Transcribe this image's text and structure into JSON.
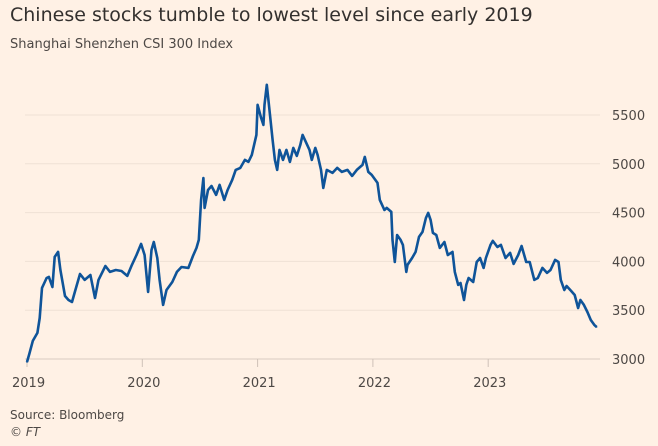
{
  "title": "Chinese stocks tumble to lowest level since early 2019",
  "subtitle": "Shanghai Shenzhen CSI 300 Index",
  "source": "Source: Bloomberg",
  "credit": "© FT",
  "colors": {
    "background": "#fff1e5",
    "line": "#0f5499",
    "grid": "#efe1d5"
  },
  "chart_data": {
    "type": "line",
    "title": "Chinese stocks tumble to lowest level since early 2019",
    "subtitle": "Shanghai Shenzhen CSI 300 Index",
    "xlabel": "",
    "ylabel": "",
    "xlim": [
      2019,
      2024
    ],
    "ylim": [
      3000,
      5800
    ],
    "x_ticks": [
      "2019",
      "2020",
      "2021",
      "2022",
      "2023"
    ],
    "y_ticks": [
      "5500",
      "5000",
      "4500",
      "4000",
      "3500",
      "3000"
    ],
    "y_axis_side": "right",
    "grid": "horizontal",
    "x_unit": "decimal year",
    "series": [
      {
        "x": [
          2019.0,
          2019.02,
          2019.05,
          2019.09,
          2019.11,
          2019.13,
          2019.15,
          2019.17,
          2019.19,
          2019.22,
          2019.24,
          2019.27,
          2019.29,
          2019.33,
          2019.36,
          2019.39,
          2019.42,
          2019.46,
          2019.5,
          2019.55,
          2019.59,
          2019.62,
          2019.68,
          2019.72,
          2019.77,
          2019.82,
          2019.87,
          2019.91,
          2019.95,
          2019.99,
          2020.02,
          2020.05,
          2020.08,
          2020.1,
          2020.13,
          2020.15,
          2020.18,
          2020.21,
          2020.26,
          2020.3,
          2020.34,
          2020.4,
          2020.44,
          2020.47,
          2020.49,
          2020.51,
          2020.53,
          2020.54,
          2020.57,
          2020.6,
          2020.64,
          2020.67,
          2020.71,
          2020.74,
          2020.78,
          2020.81,
          2020.85,
          2020.89,
          2020.92,
          2020.95,
          2020.99,
          2021.0,
          2021.03,
          2021.05,
          2021.06,
          2021.08,
          2021.11,
          2021.13,
          2021.15,
          2021.17,
          2021.19,
          2021.22,
          2021.25,
          2021.28,
          2021.31,
          2021.34,
          2021.37,
          2021.39,
          2021.41,
          2021.45,
          2021.47,
          2021.5,
          2021.52,
          2021.55,
          2021.57,
          2021.6,
          2021.65,
          2021.69,
          2021.73,
          2021.78,
          2021.82,
          2021.86,
          2021.91,
          2021.93,
          2021.96,
          2021.99,
          2022.04,
          2022.06,
          2022.1,
          2022.12,
          2022.16,
          2022.17,
          2022.19,
          2022.21,
          2022.24,
          2022.26,
          2022.29,
          2022.3,
          2022.34,
          2022.37,
          2022.4,
          2022.43,
          2022.46,
          2022.48,
          2022.5,
          2022.52,
          2022.55,
          2022.58,
          2022.62,
          2022.65,
          2022.69,
          2022.71,
          2022.74,
          2022.76,
          2022.79,
          2022.81,
          2022.83,
          2022.87,
          2022.9,
          2022.93,
          2022.96,
          2022.98,
          2023.02,
          2023.04,
          2023.08,
          2023.11,
          2023.15,
          2023.19,
          2023.22,
          2023.26,
          2023.29,
          2023.33,
          2023.36,
          2023.4,
          2023.43,
          2023.47,
          2023.51,
          2023.54,
          2023.58,
          2023.61,
          2023.63,
          2023.66,
          2023.68,
          2023.72,
          2023.75,
          2023.78,
          2023.8,
          2023.83,
          2023.86,
          2023.89,
          2023.92,
          2023.94
        ],
        "y": [
          2969,
          3051,
          3185,
          3267,
          3420,
          3728,
          3779,
          3830,
          3841,
          3738,
          4046,
          4097,
          3912,
          3646,
          3605,
          3584,
          3707,
          3871,
          3810,
          3861,
          3625,
          3810,
          3953,
          3892,
          3912,
          3902,
          3851,
          3964,
          4066,
          4179,
          4066,
          3687,
          4117,
          4199,
          4035,
          3810,
          3554,
          3707,
          3789,
          3892,
          3943,
          3933,
          4056,
          4138,
          4220,
          4630,
          4855,
          4548,
          4732,
          4773,
          4681,
          4784,
          4630,
          4732,
          4835,
          4937,
          4958,
          5040,
          5019,
          5091,
          5296,
          5604,
          5470,
          5399,
          5604,
          5809,
          5470,
          5245,
          5040,
          4937,
          5142,
          5040,
          5142,
          5019,
          5163,
          5081,
          5194,
          5296,
          5245,
          5142,
          5040,
          5163,
          5091,
          4937,
          4753,
          4937,
          4907,
          4958,
          4917,
          4937,
          4876,
          4937,
          4989,
          5071,
          4917,
          4886,
          4804,
          4630,
          4527,
          4548,
          4507,
          4220,
          3994,
          4271,
          4220,
          4169,
          3892,
          3964,
          4035,
          4097,
          4251,
          4302,
          4445,
          4497,
          4425,
          4292,
          4271,
          4138,
          4199,
          4066,
          4097,
          3892,
          3759,
          3779,
          3605,
          3759,
          3830,
          3789,
          3994,
          4035,
          3933,
          4035,
          4169,
          4210,
          4148,
          4169,
          4035,
          4087,
          3974,
          4066,
          4158,
          3994,
          3994,
          3810,
          3830,
          3933,
          3882,
          3912,
          4015,
          3994,
          3810,
          3707,
          3748,
          3697,
          3656,
          3523,
          3605,
          3554,
          3482,
          3400,
          3349,
          3328
        ]
      }
    ]
  }
}
